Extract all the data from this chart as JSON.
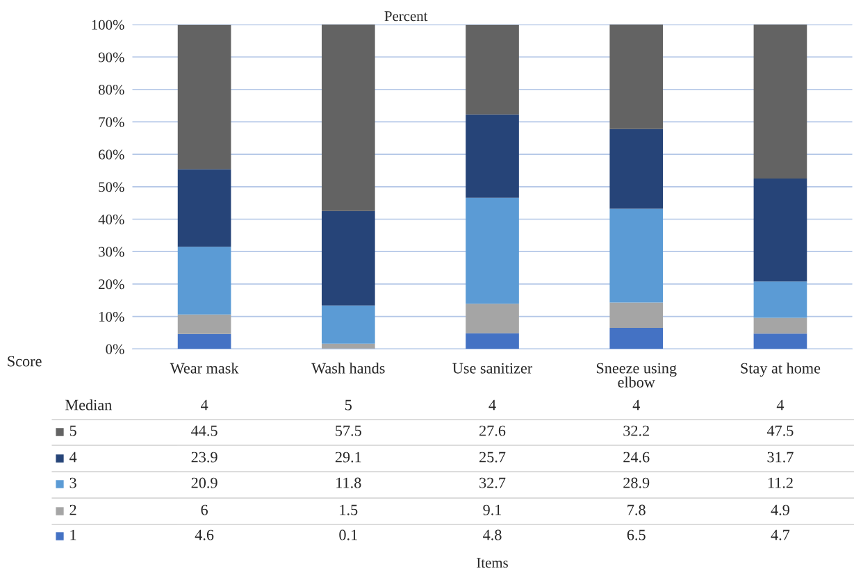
{
  "chart_data": {
    "type": "bar",
    "title": "Percent",
    "stacked": true,
    "data_labels": true,
    "legend": "bottom",
    "grid": "y",
    "categories": [
      "Wear mask",
      "Wash hands",
      "Use sanitizer",
      "Sneeze using elbow",
      "Stay at home"
    ],
    "series": [
      {
        "name": "1",
        "color": "#4472c4",
        "values": [
          4.6,
          0.1,
          4.8,
          6.5,
          4.7
        ]
      },
      {
        "name": "2",
        "color": "#a5a5a5",
        "values": [
          6,
          1.5,
          9.1,
          7.8,
          4.9
        ]
      },
      {
        "name": "3",
        "color": "#5b9bd5",
        "values": [
          20.9,
          11.8,
          32.7,
          28.9,
          11.2
        ]
      },
      {
        "name": "4",
        "color": "#264478",
        "values": [
          23.9,
          29.1,
          25.7,
          24.6,
          31.7
        ]
      },
      {
        "name": "5",
        "color": "#636363",
        "values": [
          44.5,
          57.5,
          27.6,
          32.2,
          47.5
        ]
      }
    ],
    "ylim": [
      0,
      100
    ],
    "yticks": [
      {
        "value": 0,
        "label": "0%"
      },
      {
        "value": 10,
        "label": "10%"
      },
      {
        "value": 20,
        "label": "20%"
      },
      {
        "value": 30,
        "label": "30%"
      },
      {
        "value": 40,
        "label": "40%"
      },
      {
        "value": 50,
        "label": "50%"
      },
      {
        "value": 60,
        "label": "60%"
      },
      {
        "value": 70,
        "label": "70%"
      },
      {
        "value": 80,
        "label": "80%"
      },
      {
        "value": 90,
        "label": "90%"
      },
      {
        "value": 100,
        "label": "100%"
      }
    ],
    "annotations": [
      "Score",
      "Median",
      "4",
      "5",
      "4",
      "4",
      "4",
      "Items"
    ]
  }
}
